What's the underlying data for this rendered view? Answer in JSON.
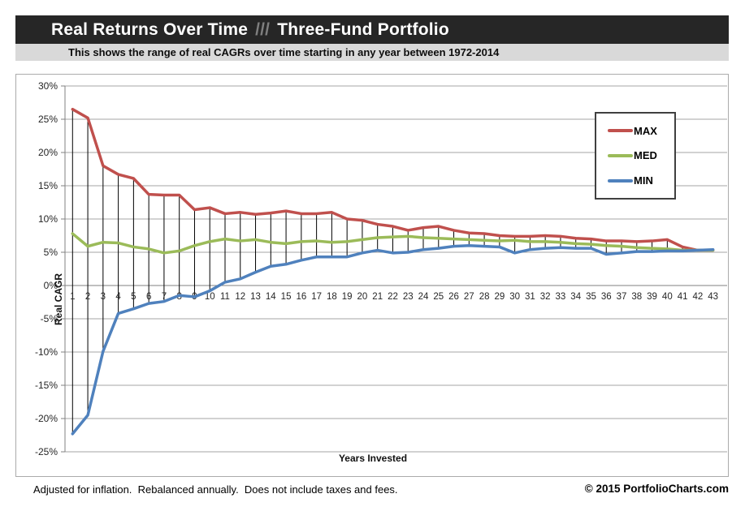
{
  "header": {
    "title_main": "Real Returns Over Time",
    "title_separator": "///",
    "title_sub": "Three-Fund Portfolio",
    "subtitle": "This shows the range of real CAGRs over time starting in any year between 1972-2014"
  },
  "chart_data": {
    "type": "line",
    "xlabel": "Years Invested",
    "ylabel": "Real CAGR",
    "x": [
      1,
      2,
      3,
      4,
      5,
      6,
      7,
      8,
      9,
      10,
      11,
      12,
      13,
      14,
      15,
      16,
      17,
      18,
      19,
      20,
      21,
      22,
      23,
      24,
      25,
      26,
      27,
      28,
      29,
      30,
      31,
      32,
      33,
      34,
      35,
      36,
      37,
      38,
      39,
      40,
      41,
      42,
      43
    ],
    "series": [
      {
        "name": "MAX",
        "color": "#C0504D",
        "values": [
          26.5,
          25.2,
          18.0,
          16.7,
          16.1,
          13.7,
          13.6,
          13.6,
          11.4,
          11.7,
          10.8,
          11.0,
          10.7,
          10.9,
          11.2,
          10.8,
          10.8,
          11.0,
          10.0,
          9.8,
          9.2,
          8.9,
          8.3,
          8.7,
          8.9,
          8.3,
          7.9,
          7.8,
          7.5,
          7.4,
          7.4,
          7.5,
          7.4,
          7.1,
          7.0,
          6.7,
          6.7,
          6.6,
          6.7,
          6.9,
          5.8,
          5.3,
          5.3
        ]
      },
      {
        "name": "MED",
        "color": "#9BBB59",
        "values": [
          7.8,
          5.9,
          6.5,
          6.4,
          5.8,
          5.5,
          4.9,
          5.2,
          6.0,
          6.6,
          7.0,
          6.7,
          6.9,
          6.5,
          6.3,
          6.6,
          6.7,
          6.5,
          6.6,
          6.9,
          7.2,
          7.3,
          7.4,
          7.2,
          7.1,
          7.0,
          6.9,
          6.8,
          6.7,
          6.8,
          6.6,
          6.6,
          6.5,
          6.3,
          6.2,
          6.0,
          5.9,
          5.7,
          5.6,
          5.5,
          5.3,
          5.3,
          5.3
        ]
      },
      {
        "name": "MIN",
        "color": "#4F81BD",
        "values": [
          -22.3,
          -19.5,
          -9.9,
          -4.2,
          -3.5,
          -2.7,
          -2.4,
          -1.5,
          -1.7,
          -0.8,
          0.5,
          1.0,
          2.0,
          2.9,
          3.2,
          3.8,
          4.3,
          4.3,
          4.3,
          4.9,
          5.3,
          4.9,
          5.0,
          5.4,
          5.6,
          5.9,
          6.0,
          5.9,
          5.8,
          4.9,
          5.4,
          5.6,
          5.7,
          5.6,
          5.6,
          4.7,
          4.9,
          5.1,
          5.1,
          5.2,
          5.2,
          5.3,
          5.4
        ]
      }
    ],
    "ylim": [
      -25,
      30
    ],
    "ytick_step": 5,
    "ytick_labels": [
      "30%",
      "25%",
      "20%",
      "15%",
      "10%",
      "5%",
      "0%",
      "-5%",
      "-10%",
      "-15%",
      "-20%",
      "-25%"
    ],
    "grid": true,
    "high_low_lines": true,
    "legend_position": "upper-right",
    "colors": {
      "gridline": "#A6A6A6",
      "axis": "#808080",
      "high_low": "#000000",
      "tick_text": "#262626"
    }
  },
  "legend": {
    "items": [
      {
        "label": "MAX",
        "color": "#C0504D"
      },
      {
        "label": "MED",
        "color": "#9BBB59"
      },
      {
        "label": "MIN",
        "color": "#4F81BD"
      }
    ]
  },
  "footer": {
    "left": "Adjusted for inflation.  Rebalanced annually.  Does not include taxes and fees.",
    "right": "© 2015 PortfolioCharts.com"
  }
}
